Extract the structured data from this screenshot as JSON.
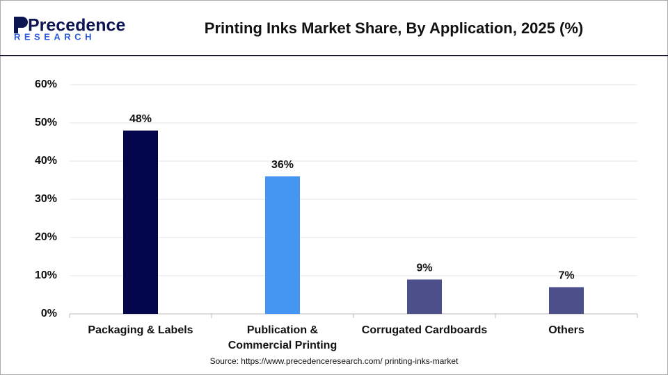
{
  "logo": {
    "name": "Precedence",
    "sub": "RESEARCH"
  },
  "chart_data": {
    "type": "bar",
    "title": "Printing Inks Market Share, By Application, 2025 (%)",
    "categories": [
      "Packaging & Labels",
      "Publication & Commercial Printing",
      "Corrugated Cardboards",
      "Others"
    ],
    "values": [
      48,
      36,
      9,
      7
    ],
    "value_labels": [
      "48%",
      "36%",
      "9%",
      "7%"
    ],
    "colors": [
      "#03064d",
      "#4596f2",
      "#4d4f8a",
      "#4d4f8a"
    ],
    "ylim": [
      0,
      60
    ],
    "yticks": [
      {
        "value": 0,
        "label": "0%"
      },
      {
        "value": 10,
        "label": "10%"
      },
      {
        "value": 20,
        "label": "20%"
      },
      {
        "value": 30,
        "label": "30%"
      },
      {
        "value": 40,
        "label": "40%"
      },
      {
        "value": 50,
        "label": "50%"
      },
      {
        "value": 60,
        "label": "60%"
      }
    ],
    "grid": true,
    "source": "Source: https://www.precedenceresearch.com/ printing-inks-market"
  }
}
